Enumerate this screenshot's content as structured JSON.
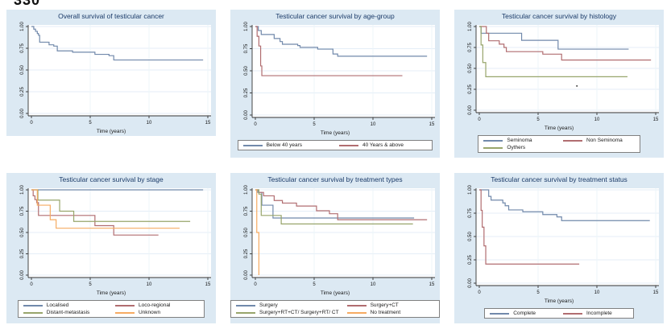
{
  "page": {
    "corner_number": "330"
  },
  "colors": {
    "blue": "#7189ab",
    "red": "#b16d70",
    "green": "#98a56b",
    "orange": "#f6ab62",
    "title_text": "#1a3a68",
    "panel_bg": "#dce9f3",
    "grid": "#e4eef7",
    "grid_vertical": "#edf4fa",
    "axis": "#333333"
  },
  "axis": {
    "x_values": [
      0,
      5,
      10,
      15
    ],
    "x_tick_labels": [
      "0",
      "5",
      "10",
      "15"
    ],
    "y_values": [
      0,
      0.25,
      0.5,
      0.75,
      1.0
    ],
    "y_tick_labels": [
      "0.00",
      "0.25",
      "0.50",
      "0.75",
      "1.00"
    ],
    "x_max": 15,
    "y_range": [
      0,
      1
    ]
  },
  "chart_data": [
    {
      "type": "line",
      "subtype": "kaplan-meier-step",
      "title": "Overall survival of testicular cancer",
      "xlabel": "Time (years)",
      "ylim": [
        0,
        1
      ],
      "xlim": [
        0,
        15
      ],
      "grid": true,
      "legend": null,
      "series": [
        {
          "name": "Overall",
          "color": "blue",
          "points": [
            [
              0,
              1.0
            ],
            [
              0.2,
              0.97
            ],
            [
              0.35,
              0.945
            ],
            [
              0.5,
              0.92
            ],
            [
              0.6,
              0.9
            ],
            [
              0.7,
              0.82
            ],
            [
              1.5,
              0.79
            ],
            [
              1.9,
              0.775
            ],
            [
              2.2,
              0.72
            ],
            [
              3.5,
              0.705
            ],
            [
              5.4,
              0.68
            ],
            [
              6.6,
              0.665
            ],
            [
              7.0,
              0.615
            ],
            [
              14.6,
              0.615
            ]
          ]
        }
      ]
    },
    {
      "type": "line",
      "subtype": "kaplan-meier-step",
      "title": "Testicular cancer survival by age-group",
      "xlabel": "Time (years)",
      "ylim": [
        0,
        1
      ],
      "xlim": [
        0,
        15
      ],
      "grid": true,
      "legend": {
        "cols": 2,
        "width": "88%",
        "position": "bottom"
      },
      "series": [
        {
          "name": "Below 40 years",
          "color": "blue",
          "points": [
            [
              0,
              1.0
            ],
            [
              0.25,
              0.955
            ],
            [
              0.5,
              0.91
            ],
            [
              1.6,
              0.865
            ],
            [
              2.1,
              0.83
            ],
            [
              2.3,
              0.8
            ],
            [
              3.6,
              0.785
            ],
            [
              3.8,
              0.765
            ],
            [
              5.3,
              0.745
            ],
            [
              6.6,
              0.69
            ],
            [
              7.0,
              0.665
            ],
            [
              14.6,
              0.665
            ]
          ]
        },
        {
          "name": "40 Years & above",
          "color": "red",
          "points": [
            [
              0,
              1.0
            ],
            [
              0.15,
              0.89
            ],
            [
              0.3,
              0.78
            ],
            [
              0.45,
              0.555
            ],
            [
              0.55,
              0.445
            ],
            [
              12.5,
              0.445
            ]
          ]
        }
      ]
    },
    {
      "type": "line",
      "subtype": "kaplan-meier-step",
      "title": "Testicular cancer survival by histology",
      "xlabel": "Time (years)",
      "ylim": [
        0,
        1
      ],
      "xlim": [
        0,
        15
      ],
      "grid": true,
      "legend": {
        "cols": 2,
        "width": "72%",
        "position": "bottom"
      },
      "stray_mark": {
        "x": 8.3,
        "y": 0.29
      },
      "series": [
        {
          "name": "Seminoma",
          "color": "blue",
          "points": [
            [
              0,
              1.0
            ],
            [
              0.15,
              0.92
            ],
            [
              3.6,
              0.835
            ],
            [
              6.7,
              0.73
            ],
            [
              12.7,
              0.73
            ]
          ]
        },
        {
          "name": "Non Seminoma",
          "color": "red",
          "points": [
            [
              0,
              1.0
            ],
            [
              0.6,
              0.92
            ],
            [
              0.8,
              0.83
            ],
            [
              1.7,
              0.79
            ],
            [
              2.1,
              0.75
            ],
            [
              2.3,
              0.7
            ],
            [
              5.4,
              0.67
            ],
            [
              7.0,
              0.6
            ],
            [
              14.6,
              0.6
            ]
          ]
        },
        {
          "name": "Oythers",
          "color": "green",
          "points": [
            [
              0,
              1.0
            ],
            [
              0.15,
              0.78
            ],
            [
              0.3,
              0.57
            ],
            [
              0.55,
              0.4
            ],
            [
              12.6,
              0.4
            ]
          ]
        }
      ]
    },
    {
      "type": "line",
      "subtype": "kaplan-meier-step",
      "title": "Testicular cancer survival by stage",
      "xlabel": "Time (years)",
      "ylim": [
        0,
        1
      ],
      "xlim": [
        0,
        15
      ],
      "grid": true,
      "legend": {
        "cols": 2,
        "width": "84%",
        "position": "bottom"
      },
      "series": [
        {
          "name": "Localised",
          "color": "blue",
          "points": [
            [
              0,
              1.0
            ],
            [
              14.6,
              1.0
            ]
          ]
        },
        {
          "name": "Loco-regional",
          "color": "red",
          "points": [
            [
              0,
              1.0
            ],
            [
              0.15,
              0.93
            ],
            [
              0.3,
              0.885
            ],
            [
              0.45,
              0.85
            ],
            [
              0.6,
              0.7
            ],
            [
              5.4,
              0.58
            ],
            [
              7.0,
              0.47
            ],
            [
              10.8,
              0.47
            ]
          ]
        },
        {
          "name": "Distant-metastasis",
          "color": "green",
          "points": [
            [
              0,
              1.0
            ],
            [
              0.55,
              0.88
            ],
            [
              2.4,
              0.75
            ],
            [
              3.6,
              0.63
            ],
            [
              13.5,
              0.63
            ]
          ]
        },
        {
          "name": "Unknown",
          "color": "orange",
          "points": [
            [
              0,
              1.0
            ],
            [
              0.5,
              0.82
            ],
            [
              1.6,
              0.65
            ],
            [
              2.1,
              0.55
            ],
            [
              12.6,
              0.55
            ]
          ]
        }
      ]
    },
    {
      "type": "line",
      "subtype": "kaplan-meier-step",
      "title": "Testicular cancer survival by treatment types",
      "xlabel": "Time (years)",
      "ylim": [
        0,
        1
      ],
      "xlim": [
        0,
        15
      ],
      "grid": true,
      "legend": {
        "cols": 2,
        "width": "97%",
        "position": "bottom"
      },
      "series": [
        {
          "name": "Surgery",
          "color": "blue",
          "points": [
            [
              0,
              1.0
            ],
            [
              0.2,
              0.97
            ],
            [
              0.55,
              0.82
            ],
            [
              1.5,
              0.67
            ],
            [
              13.5,
              0.67
            ]
          ]
        },
        {
          "name": "Surgery+CT",
          "color": "red",
          "points": [
            [
              0,
              1.0
            ],
            [
              0.3,
              0.97
            ],
            [
              0.7,
              0.93
            ],
            [
              1.6,
              0.875
            ],
            [
              2.3,
              0.845
            ],
            [
              3.5,
              0.81
            ],
            [
              5.2,
              0.755
            ],
            [
              6.3,
              0.72
            ],
            [
              7.0,
              0.65
            ],
            [
              14.6,
              0.65
            ]
          ]
        },
        {
          "name": "Surgery+RT+CT/ Surgery+RT/ CT",
          "color": "green",
          "points": [
            [
              0,
              1.0
            ],
            [
              0.3,
              0.95
            ],
            [
              0.5,
              0.7
            ],
            [
              2.2,
              0.6
            ],
            [
              13.4,
              0.6
            ]
          ]
        },
        {
          "name": "No treatment",
          "color": "orange",
          "points": [
            [
              0,
              1.0
            ],
            [
              0.12,
              0.5
            ],
            [
              0.3,
              0.0
            ]
          ]
        }
      ]
    },
    {
      "type": "line",
      "subtype": "kaplan-meier-step",
      "title": "Testicular cancer survival  by treatment status",
      "xlabel": "Time (years)",
      "ylim": [
        0,
        1
      ],
      "xlim": [
        0,
        15
      ],
      "grid": true,
      "legend": {
        "cols": 2,
        "width": "66%",
        "position": "bottom"
      },
      "series": [
        {
          "name": "Complete",
          "color": "blue",
          "points": [
            [
              0,
              1.0
            ],
            [
              0.8,
              0.93
            ],
            [
              1.0,
              0.89
            ],
            [
              2.0,
              0.86
            ],
            [
              2.2,
              0.83
            ],
            [
              2.5,
              0.785
            ],
            [
              3.7,
              0.765
            ],
            [
              5.4,
              0.735
            ],
            [
              6.6,
              0.71
            ],
            [
              7.0,
              0.67
            ],
            [
              14.5,
              0.67
            ]
          ]
        },
        {
          "name": "Incomplete",
          "color": "red",
          "points": [
            [
              0,
              1.0
            ],
            [
              0.15,
              0.78
            ],
            [
              0.25,
              0.6
            ],
            [
              0.4,
              0.4
            ],
            [
              0.55,
              0.205
            ],
            [
              8.5,
              0.205
            ]
          ]
        }
      ]
    }
  ]
}
